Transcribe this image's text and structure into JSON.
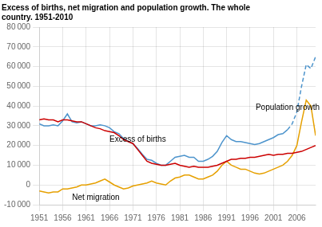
{
  "chart_data": {
    "type": "line",
    "title": "Excess of births, net migration and population growth. The whole\ncountry. 1951-2010",
    "x": [
      1951,
      1952,
      1953,
      1954,
      1955,
      1956,
      1957,
      1958,
      1959,
      1960,
      1961,
      1962,
      1963,
      1964,
      1965,
      1966,
      1967,
      1968,
      1969,
      1970,
      1971,
      1972,
      1973,
      1974,
      1975,
      1976,
      1977,
      1978,
      1979,
      1980,
      1981,
      1982,
      1983,
      1984,
      1985,
      1986,
      1987,
      1988,
      1989,
      1990,
      1991,
      1992,
      1993,
      1994,
      1995,
      1996,
      1997,
      1998,
      1999,
      2000,
      2001,
      2002,
      2003,
      2004,
      2005,
      2006,
      2007,
      2008,
      2009,
      2010
    ],
    "series": [
      {
        "name": "Excess of births",
        "color": "#cc0000",
        "line_style": "solid",
        "values": [
          33000,
          33500,
          33000,
          33000,
          32000,
          33000,
          33000,
          32500,
          32000,
          32000,
          31000,
          30000,
          29000,
          28500,
          27500,
          27000,
          26500,
          25000,
          23000,
          22000,
          21000,
          18000,
          15000,
          12000,
          11000,
          10500,
          10000,
          10000,
          10500,
          11000,
          10000,
          9500,
          9000,
          9500,
          9000,
          9000,
          9000,
          9500,
          10000,
          11000,
          12000,
          13000,
          13000,
          13500,
          13500,
          14000,
          14000,
          14500,
          15000,
          15500,
          15000,
          15500,
          15500,
          16000,
          16000,
          16500,
          17000,
          18000,
          19000,
          20000
        ]
      },
      {
        "name": "Net migration",
        "color": "#e6a000",
        "line_style": "solid",
        "values": [
          -3000,
          -3500,
          -4000,
          -3500,
          -3500,
          -2000,
          -2000,
          -1500,
          -1000,
          0,
          0,
          500,
          1000,
          2000,
          3000,
          1500,
          0,
          -1000,
          -2000,
          -1500,
          -500,
          0,
          500,
          1000,
          2000,
          1000,
          500,
          0,
          2000,
          3500,
          4000,
          5000,
          5000,
          4000,
          3000,
          3000,
          4000,
          5000,
          7000,
          10000,
          12000,
          10000,
          9000,
          8000,
          8000,
          7000,
          6000,
          5500,
          6000,
          7000,
          8000,
          9000,
          10000,
          12000,
          15000,
          20000,
          32000,
          43000,
          40000,
          25000
        ]
      },
      {
        "name": "Population growth",
        "color": "#4d94cc",
        "line_style": "solid",
        "values": [
          31000,
          30000,
          30000,
          30500,
          30000,
          32500,
          36000,
          32000,
          31500,
          32000,
          31000,
          30000,
          30000,
          30500,
          30000,
          29000,
          27000,
          26000,
          23500,
          22000,
          21000,
          18500,
          15500,
          13000,
          12500,
          11000,
          10000,
          10000,
          12000,
          14000,
          14500,
          15000,
          14000,
          14000,
          12000,
          12000,
          13000,
          14500,
          17000,
          21500,
          25000,
          23000,
          22000,
          22000,
          21500,
          21000,
          20500,
          21000,
          22000,
          23000,
          24000,
          25500,
          26000,
          28000,
          null,
          null,
          null,
          null,
          null,
          null
        ]
      },
      {
        "name": "Population growth",
        "color": "#4d94cc",
        "line_style": "dashed",
        "values": [
          null,
          null,
          null,
          null,
          null,
          null,
          null,
          null,
          null,
          null,
          null,
          null,
          null,
          null,
          null,
          null,
          null,
          null,
          null,
          null,
          null,
          null,
          null,
          null,
          null,
          null,
          null,
          null,
          null,
          null,
          null,
          null,
          null,
          null,
          null,
          null,
          null,
          null,
          null,
          null,
          null,
          null,
          null,
          null,
          null,
          null,
          null,
          null,
          null,
          null,
          null,
          null,
          null,
          28000,
          31000,
          37000,
          50000,
          61000,
          59000,
          65000
        ]
      }
    ],
    "annotations": [
      {
        "text": "Population growth",
        "x": 2001,
        "y": 37000
      },
      {
        "text": "Excess of births",
        "x": 1966,
        "y": 21000
      },
      {
        "text": "Net migration",
        "x": 1958,
        "y": -8500
      }
    ],
    "xlim": [
      1951,
      2010
    ],
    "xticks": [
      1951,
      1956,
      1961,
      1966,
      1971,
      1976,
      1981,
      1986,
      1991,
      1996,
      2001,
      2006
    ],
    "ylim": [
      -10000,
      80000
    ],
    "yticks": [
      {
        "value": -10000,
        "label": "-10 000"
      },
      0,
      {
        "value": 10000,
        "label": "10 000"
      },
      {
        "value": 20000,
        "label": "20 000"
      },
      {
        "value": 30000,
        "label": "30 000"
      },
      {
        "value": 40000,
        "label": "40 000"
      },
      {
        "value": 50000,
        "label": "50 000"
      },
      {
        "value": 60000,
        "label": "60 000"
      },
      {
        "value": 70000,
        "label": "70 000"
      },
      {
        "value": 80000,
        "label": "80 000"
      }
    ],
    "grid": true,
    "legend": false
  }
}
